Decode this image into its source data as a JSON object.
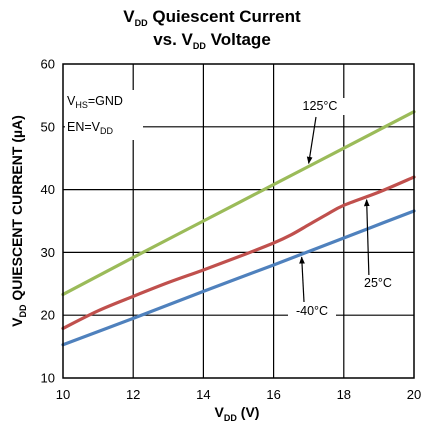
{
  "chart_data": {
    "type": "line",
    "title": {
      "line1": {
        "main": "V",
        "sub": "DD",
        "rest": " Quiescent Current"
      },
      "line2": {
        "pre": "vs. V",
        "sub": "DD",
        "rest": " Voltage"
      }
    },
    "xlabel": {
      "main": "V",
      "sub": "DD",
      "rest": " (V)"
    },
    "ylabel": {
      "main": "V",
      "sub": "DD",
      "rest": " QUIESCENT CURRENT (µA)"
    },
    "xlim": [
      10,
      20
    ],
    "ylim": [
      10,
      60
    ],
    "x_ticks": [
      10,
      12,
      14,
      16,
      18,
      20
    ],
    "y_ticks": [
      10,
      20,
      30,
      40,
      50,
      60
    ],
    "grid": true,
    "series": [
      {
        "name": "125°C",
        "color": "#9bbb59",
        "x": [
          10,
          12,
          14,
          16,
          18,
          20
        ],
        "y": [
          23.3,
          29.2,
          35.0,
          40.8,
          46.6,
          52.4
        ]
      },
      {
        "name": "25°C",
        "color": "#c0504d",
        "x": [
          10,
          11,
          12,
          13,
          14,
          15,
          16,
          16.5,
          17,
          17.5,
          18,
          19,
          20
        ],
        "y": [
          17.9,
          20.7,
          23.0,
          25.2,
          27.2,
          29.3,
          31.5,
          32.8,
          34.4,
          36.0,
          37.5,
          39.6,
          42.0
        ]
      },
      {
        "name": "-40°C",
        "color": "#4f81bd",
        "x": [
          10,
          12,
          14,
          16,
          18,
          20
        ],
        "y": [
          15.3,
          19.5,
          23.8,
          28.0,
          32.3,
          36.6
        ]
      }
    ],
    "annotations": [
      {
        "text": "125°C",
        "target_series": "125°C"
      },
      {
        "text": "25°C",
        "target_series": "25°C"
      },
      {
        "text": "-40°C",
        "target_series": "-40°C"
      }
    ],
    "conditions": {
      "line1": {
        "main": "V",
        "sub": "HS",
        "rest": "=GND"
      },
      "line2": {
        "main": "EN=V",
        "sub": "DD",
        "rest": ""
      }
    }
  }
}
